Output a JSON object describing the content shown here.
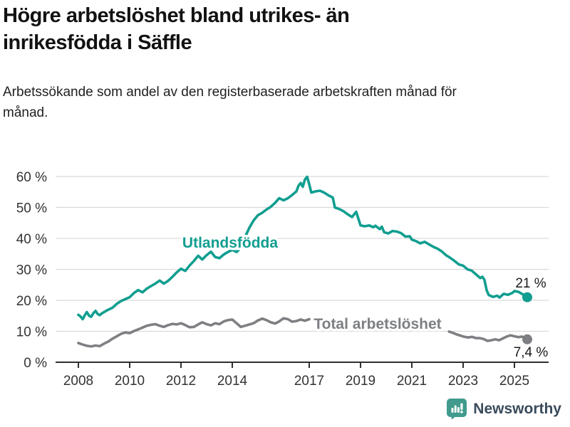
{
  "title": "Högre arbetslöshet bland utrikes- än inrikesfödda i Säffle",
  "subtitle": "Arbetssökande som andel av den registerbaserade arbetskraften månad för månad.",
  "branding": {
    "name": "Newsworthy",
    "icon": "bar-chart-speech-bubble-icon",
    "icon_color": "#419a8e",
    "text_color": "#3a4b5c"
  },
  "colors": {
    "foreign_born_line": "#119e90",
    "total_line": "#7d7f82",
    "grid": "#d9d9d9",
    "axis": "#2f2f2f",
    "tick_text": "#333333"
  },
  "chart_data": {
    "type": "line",
    "title": "Högre arbetslöshet bland utrikes- än inrikesfödda i Säffle",
    "subtitle": "Arbetssökande som andel av den registerbaserade arbetskraften månad för månad.",
    "grid": true,
    "legend_position": "inline-labels",
    "x_axis": {
      "ticks": [
        2008,
        2010,
        2012,
        2014,
        2017,
        2019,
        2021,
        2023,
        2025
      ],
      "tick_labels": [
        "2008",
        "2010",
        "2012",
        "2014",
        "2017",
        "2019",
        "2021",
        "2023",
        "2025"
      ],
      "range": [
        2007.1,
        2026.3
      ]
    },
    "y_axis": {
      "unit": "%",
      "tick_values": [
        0,
        10,
        20,
        30,
        40,
        50,
        60
      ],
      "tick_labels": [
        "0 %",
        "10 %",
        "20 %",
        "30 %",
        "40 %",
        "50 %",
        "60 %"
      ],
      "range": [
        0,
        60
      ]
    },
    "series": [
      {
        "name": "Utlandsfödda",
        "color": "#119e90",
        "end_value": 21,
        "end_label": "21 %",
        "segments": [
          [
            [
              2008.0,
              15.3
            ],
            [
              2008.08,
              14.8
            ],
            [
              2008.17,
              13.9
            ],
            [
              2008.25,
              15.2
            ],
            [
              2008.33,
              16.2
            ],
            [
              2008.42,
              15.0
            ],
            [
              2008.5,
              14.7
            ],
            [
              2008.58,
              15.8
            ],
            [
              2008.67,
              16.6
            ],
            [
              2008.75,
              15.6
            ],
            [
              2008.83,
              15.2
            ],
            [
              2008.92,
              15.8
            ],
            [
              2009.0,
              16.2
            ],
            [
              2009.17,
              17.0
            ],
            [
              2009.33,
              17.6
            ],
            [
              2009.5,
              18.9
            ],
            [
              2009.67,
              19.8
            ],
            [
              2009.83,
              20.4
            ],
            [
              2010.0,
              21.0
            ],
            [
              2010.17,
              22.4
            ],
            [
              2010.33,
              23.3
            ],
            [
              2010.5,
              22.6
            ],
            [
              2010.67,
              23.8
            ],
            [
              2010.83,
              24.6
            ],
            [
              2011.0,
              25.4
            ],
            [
              2011.17,
              26.4
            ],
            [
              2011.33,
              25.4
            ],
            [
              2011.5,
              26.3
            ],
            [
              2011.67,
              27.6
            ],
            [
              2011.83,
              29.0
            ],
            [
              2012.0,
              30.2
            ],
            [
              2012.17,
              29.5
            ],
            [
              2012.33,
              31.2
            ],
            [
              2012.5,
              32.7
            ],
            [
              2012.67,
              34.4
            ],
            [
              2012.83,
              33.2
            ],
            [
              2013.0,
              34.6
            ],
            [
              2013.17,
              35.7
            ],
            [
              2013.33,
              34.0
            ],
            [
              2013.5,
              33.6
            ],
            [
              2013.67,
              34.8
            ],
            [
              2013.83,
              35.6
            ],
            [
              2014.0,
              36.3
            ],
            [
              2014.17,
              35.6
            ],
            [
              2014.33,
              37.0
            ],
            [
              2014.5,
              40.5
            ],
            [
              2014.67,
              43.5
            ],
            [
              2014.83,
              45.8
            ],
            [
              2015.0,
              47.5
            ],
            [
              2015.17,
              48.3
            ],
            [
              2015.33,
              49.3
            ],
            [
              2015.5,
              50.2
            ],
            [
              2015.67,
              51.5
            ],
            [
              2015.83,
              53.0
            ],
            [
              2016.0,
              52.3
            ],
            [
              2016.17,
              53.0
            ],
            [
              2016.33,
              54.0
            ],
            [
              2016.5,
              55.2
            ],
            [
              2016.58,
              57.0
            ],
            [
              2016.67,
              57.9
            ],
            [
              2016.75,
              56.7
            ],
            [
              2016.83,
              59.0
            ],
            [
              2016.92,
              59.9
            ],
            [
              2017.0,
              57.5
            ],
            [
              2017.08,
              54.8
            ],
            [
              2017.25,
              55.2
            ],
            [
              2017.42,
              55.4
            ],
            [
              2017.58,
              54.8
            ],
            [
              2017.75,
              53.9
            ],
            [
              2017.92,
              53.2
            ],
            [
              2018.0,
              50.0
            ],
            [
              2018.17,
              49.5
            ],
            [
              2018.33,
              48.8
            ],
            [
              2018.5,
              47.8
            ],
            [
              2018.67,
              46.9
            ],
            [
              2018.83,
              48.6
            ],
            [
              2019.0,
              44.2
            ],
            [
              2019.17,
              43.9
            ],
            [
              2019.33,
              44.2
            ],
            [
              2019.5,
              43.6
            ],
            [
              2019.58,
              44.1
            ],
            [
              2019.75,
              43.0
            ],
            [
              2019.83,
              43.8
            ],
            [
              2019.92,
              42.0
            ],
            [
              2020.08,
              41.6
            ],
            [
              2020.25,
              42.4
            ],
            [
              2020.42,
              42.2
            ],
            [
              2020.58,
              41.7
            ],
            [
              2020.75,
              40.6
            ],
            [
              2020.92,
              40.7
            ],
            [
              2021.0,
              39.6
            ],
            [
              2021.17,
              39.1
            ],
            [
              2021.33,
              38.4
            ],
            [
              2021.5,
              38.9
            ],
            [
              2021.67,
              38.1
            ],
            [
              2021.83,
              37.3
            ],
            [
              2022.0,
              36.7
            ],
            [
              2022.17,
              35.8
            ],
            [
              2022.33,
              34.6
            ],
            [
              2022.5,
              33.7
            ],
            [
              2022.67,
              32.7
            ],
            [
              2022.83,
              31.6
            ],
            [
              2023.0,
              31.2
            ],
            [
              2023.17,
              30.0
            ],
            [
              2023.33,
              29.6
            ],
            [
              2023.5,
              28.4
            ],
            [
              2023.67,
              27.2
            ],
            [
              2023.75,
              27.6
            ],
            [
              2023.83,
              26.6
            ],
            [
              2023.92,
              23.2
            ],
            [
              2024.0,
              21.7
            ],
            [
              2024.17,
              21.1
            ],
            [
              2024.33,
              21.5
            ],
            [
              2024.42,
              20.9
            ],
            [
              2024.58,
              22.1
            ],
            [
              2024.75,
              21.8
            ],
            [
              2024.92,
              22.4
            ],
            [
              2025.0,
              23.0
            ],
            [
              2025.17,
              22.7
            ],
            [
              2025.33,
              21.9
            ],
            [
              2025.5,
              21.0
            ]
          ]
        ]
      },
      {
        "name": "Total arbetslöshet",
        "color": "#7d7f82",
        "end_value": 7.4,
        "end_label": "7,4 %",
        "segments": [
          [
            [
              2008.0,
              6.2
            ],
            [
              2008.17,
              5.7
            ],
            [
              2008.33,
              5.3
            ],
            [
              2008.5,
              5.1
            ],
            [
              2008.67,
              5.4
            ],
            [
              2008.83,
              5.2
            ],
            [
              2009.0,
              6.0
            ],
            [
              2009.17,
              6.7
            ],
            [
              2009.33,
              7.6
            ],
            [
              2009.5,
              8.4
            ],
            [
              2009.67,
              9.2
            ],
            [
              2009.83,
              9.6
            ],
            [
              2010.0,
              9.4
            ],
            [
              2010.17,
              10.1
            ],
            [
              2010.33,
              10.6
            ],
            [
              2010.5,
              11.2
            ],
            [
              2010.67,
              11.8
            ],
            [
              2010.83,
              12.1
            ],
            [
              2011.0,
              12.3
            ],
            [
              2011.17,
              11.8
            ],
            [
              2011.33,
              11.4
            ],
            [
              2011.5,
              12.0
            ],
            [
              2011.67,
              12.4
            ],
            [
              2011.83,
              12.2
            ],
            [
              2012.0,
              12.6
            ],
            [
              2012.17,
              12.0
            ],
            [
              2012.33,
              11.3
            ],
            [
              2012.5,
              11.4
            ],
            [
              2012.67,
              12.2
            ],
            [
              2012.83,
              12.9
            ],
            [
              2013.0,
              12.3
            ],
            [
              2013.17,
              11.9
            ],
            [
              2013.33,
              12.6
            ],
            [
              2013.5,
              12.3
            ],
            [
              2013.67,
              13.2
            ],
            [
              2013.83,
              13.6
            ],
            [
              2014.0,
              13.8
            ],
            [
              2014.17,
              12.6
            ],
            [
              2014.33,
              11.4
            ],
            [
              2014.5,
              11.8
            ],
            [
              2014.67,
              12.2
            ],
            [
              2014.83,
              12.6
            ],
            [
              2015.0,
              13.5
            ],
            [
              2015.17,
              14.1
            ],
            [
              2015.33,
              13.6
            ],
            [
              2015.5,
              12.9
            ],
            [
              2015.67,
              12.5
            ],
            [
              2015.83,
              13.2
            ],
            [
              2016.0,
              14.2
            ],
            [
              2016.17,
              13.9
            ],
            [
              2016.33,
              13.1
            ],
            [
              2016.5,
              13.3
            ],
            [
              2016.67,
              13.8
            ],
            [
              2016.83,
              13.4
            ],
            [
              2017.0,
              13.9
            ]
          ],
          [
            [
              2022.45,
              9.9
            ],
            [
              2022.6,
              9.5
            ],
            [
              2022.75,
              9.0
            ],
            [
              2022.9,
              8.6
            ],
            [
              2023.05,
              8.2
            ],
            [
              2023.2,
              8.0
            ],
            [
              2023.35,
              8.2
            ],
            [
              2023.5,
              7.8
            ],
            [
              2023.65,
              7.8
            ],
            [
              2023.8,
              7.5
            ],
            [
              2023.95,
              6.9
            ],
            [
              2024.1,
              7.1
            ],
            [
              2024.25,
              7.4
            ],
            [
              2024.4,
              7.1
            ],
            [
              2024.55,
              7.7
            ],
            [
              2024.7,
              8.3
            ],
            [
              2024.85,
              8.7
            ],
            [
              2025.0,
              8.4
            ],
            [
              2025.15,
              8.1
            ],
            [
              2025.3,
              8.3
            ],
            [
              2025.5,
              7.4
            ]
          ]
        ]
      }
    ]
  }
}
